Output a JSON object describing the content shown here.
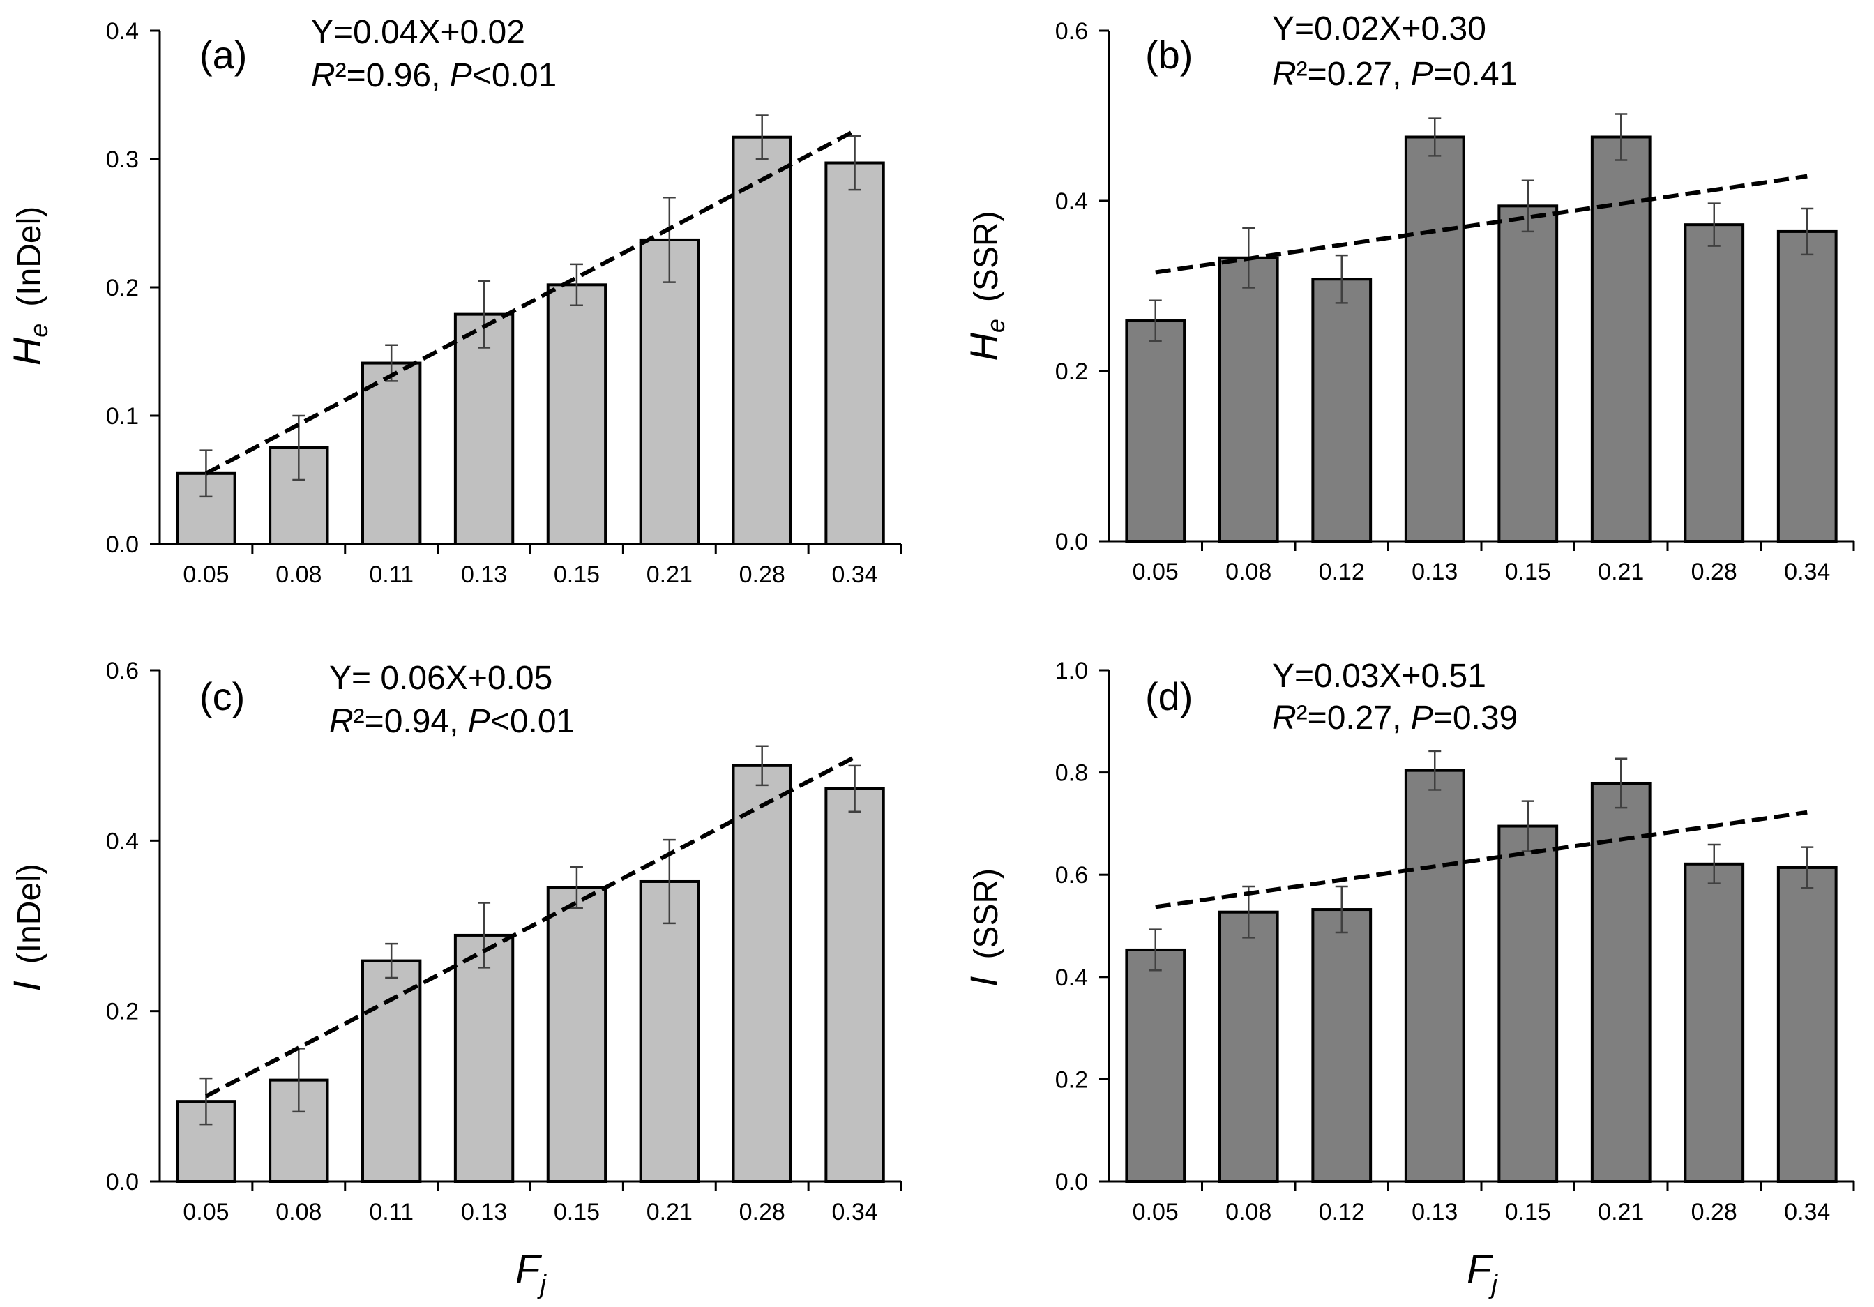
{
  "chart_data": [
    {
      "type": "bar",
      "panel_label": "(a)",
      "categories": [
        "0.05",
        "0.08",
        "0.11",
        "0.13",
        "0.15",
        "0.21",
        "0.28",
        "0.34"
      ],
      "values": [
        0.055,
        0.075,
        0.141,
        0.179,
        0.202,
        0.237,
        0.317,
        0.297
      ],
      "errors": [
        0.018,
        0.025,
        0.014,
        0.026,
        0.016,
        0.033,
        0.017,
        0.021
      ],
      "trend": {
        "start": 0.055,
        "end": 0.322
      },
      "ylim": [
        0,
        0.4
      ],
      "yticks": [
        "0.0",
        "0.1",
        "0.2",
        "0.3",
        "0.4"
      ],
      "ylabel": {
        "symbol": "H",
        "subscript": "e",
        "rest": "(InDel)"
      },
      "xlabel": "",
      "equation": "Y=0.04X+0.02",
      "stats": {
        "r_label": "R",
        "r_value": "²=0.96, ",
        "p_label": "P",
        "p_value": "<0.01"
      },
      "bar_color": "#c0c0c0"
    },
    {
      "type": "bar",
      "panel_label": "(b)",
      "categories": [
        "0.05",
        "0.08",
        "0.12",
        "0.13",
        "0.15",
        "0.21",
        "0.28",
        "0.34"
      ],
      "values": [
        0.259,
        0.333,
        0.308,
        0.475,
        0.394,
        0.475,
        0.372,
        0.364
      ],
      "errors": [
        0.024,
        0.035,
        0.028,
        0.022,
        0.03,
        0.027,
        0.025,
        0.027
      ],
      "trend": {
        "start": 0.316,
        "end": 0.429
      },
      "ylim": [
        0,
        0.6
      ],
      "yticks": [
        "0.0",
        "0.2",
        "0.4",
        "0.6"
      ],
      "ylabel": {
        "symbol": "H",
        "subscript": "e",
        "rest": "(SSR)"
      },
      "xlabel": "",
      "equation": "Y=0.02X+0.30",
      "stats": {
        "r_label": "R",
        "r_value": "²=0.27, ",
        "p_label": "P",
        "p_value": "=0.41"
      },
      "bar_color": "#7f7f7f"
    },
    {
      "type": "bar",
      "panel_label": "(c)",
      "categories": [
        "0.05",
        "0.08",
        "0.11",
        "0.13",
        "0.15",
        "0.21",
        "0.28",
        "0.34"
      ],
      "values": [
        0.094,
        0.119,
        0.259,
        0.289,
        0.345,
        0.352,
        0.488,
        0.461
      ],
      "errors": [
        0.027,
        0.037,
        0.02,
        0.038,
        0.024,
        0.049,
        0.023,
        0.027
      ],
      "trend": {
        "start": 0.1,
        "end": 0.498
      },
      "ylim": [
        0,
        0.6
      ],
      "yticks": [
        "0.0",
        "0.2",
        "0.4",
        "0.6"
      ],
      "ylabel": {
        "symbol": "I",
        "subscript": "",
        "rest": "(InDel)"
      },
      "xlabel": "Fj",
      "xlabel_main": "F",
      "xlabel_sub": "j",
      "equation": "Y= 0.06X+0.05",
      "stats": {
        "r_label": "R",
        "r_value": "²=0.94, ",
        "p_label": "P",
        "p_value": "<0.01"
      },
      "bar_color": "#c0c0c0"
    },
    {
      "type": "bar",
      "panel_label": "(d)",
      "categories": [
        "0.05",
        "0.08",
        "0.12",
        "0.13",
        "0.15",
        "0.21",
        "0.28",
        "0.34"
      ],
      "values": [
        0.453,
        0.527,
        0.532,
        0.804,
        0.695,
        0.779,
        0.621,
        0.614
      ],
      "errors": [
        0.04,
        0.05,
        0.045,
        0.038,
        0.049,
        0.048,
        0.038,
        0.04
      ],
      "trend": {
        "start": 0.537,
        "end": 0.722
      },
      "ylim": [
        0,
        1.0
      ],
      "yticks": [
        "0.0",
        "0.2",
        "0.4",
        "0.6",
        "0.8",
        "1.0"
      ],
      "ylabel": {
        "symbol": "I",
        "subscript": "",
        "rest": "(SSR)"
      },
      "xlabel": "Fj",
      "xlabel_main": "F",
      "xlabel_sub": "j",
      "equation": "Y=0.03X+0.51",
      "stats": {
        "r_label": "R",
        "r_value": "²=0.27, ",
        "p_label": "P",
        "p_value": "=0.39"
      },
      "bar_color": "#7f7f7f"
    }
  ]
}
